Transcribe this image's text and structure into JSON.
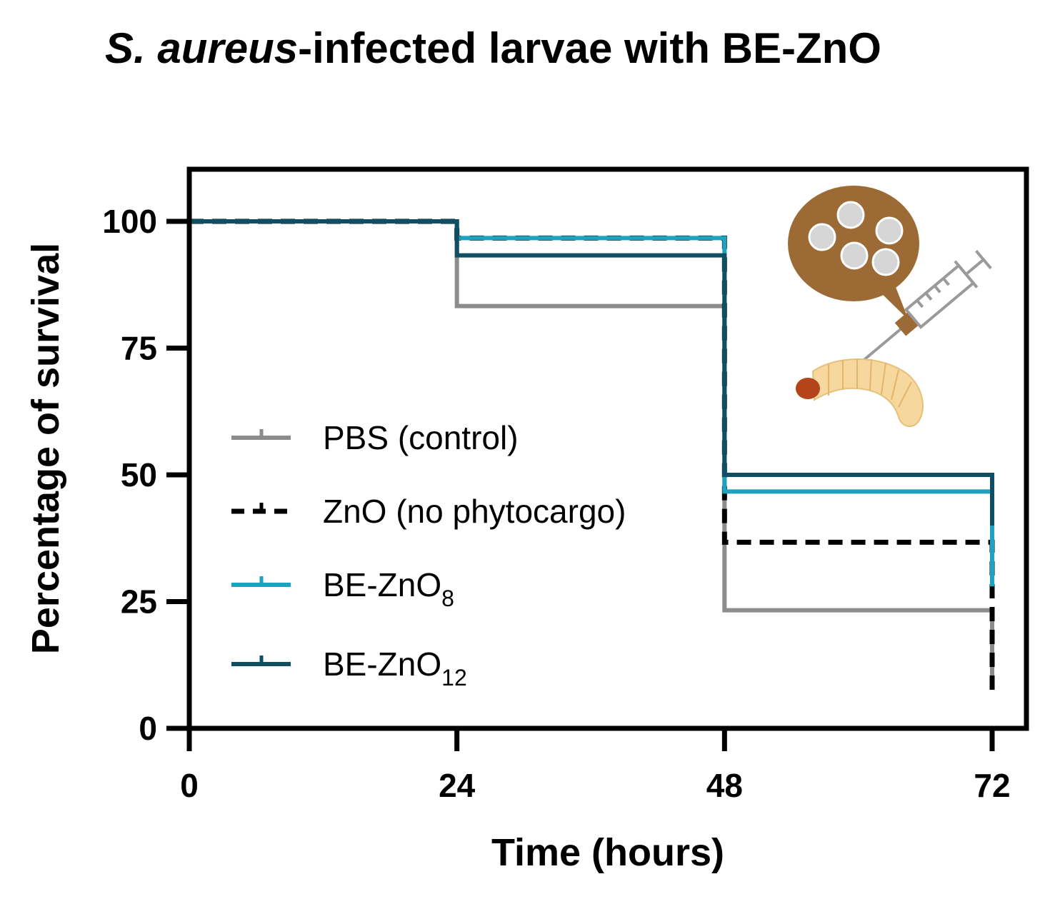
{
  "chart_data": {
    "type": "line",
    "subtype": "kaplan-meier-step",
    "title": {
      "italic_part": "S. aureus",
      "regular_part": "-infected larvae with BE-ZnO"
    },
    "xlabel": "Time (hours)",
    "ylabel": "Percentage of survival",
    "xlim": [
      0,
      72
    ],
    "ylim": [
      0,
      110
    ],
    "xticks": [
      0,
      24,
      48,
      72
    ],
    "yticks": [
      0,
      25,
      50,
      75,
      100
    ],
    "grid": false,
    "legend_position": "center-left",
    "series": [
      {
        "name": "PBS (control)",
        "label_main": "PBS (control)",
        "label_sub": "",
        "color": "#8c8c8c",
        "dash": "solid",
        "x": [
          0,
          24,
          48,
          72
        ],
        "values": [
          100,
          83.3,
          23.3,
          8
        ]
      },
      {
        "name": "ZnO (no phytocargo)",
        "label_main": "ZnO (no phytocargo)",
        "label_sub": "",
        "color": "#000000",
        "dash": "dashed",
        "x": [
          0,
          24,
          48,
          72
        ],
        "values": [
          100,
          96.7,
          36.7,
          7
        ]
      },
      {
        "name": "BE-ZnO8",
        "label_main": "BE-ZnO",
        "label_sub": "8",
        "color": "#1ea2c0",
        "dash": "solid",
        "x": [
          0,
          24,
          48,
          72
        ],
        "values": [
          100,
          96.7,
          46.7,
          28
        ]
      },
      {
        "name": "BE-ZnO12",
        "label_main": "BE-ZnO",
        "label_sub": "12",
        "color": "#0f4f63",
        "dash": "solid",
        "x": [
          0,
          24,
          48,
          72
        ],
        "values": [
          100,
          93.3,
          50,
          40
        ]
      }
    ]
  },
  "illustration": {
    "description_icon": "larva-syringe-nanoparticle-icon",
    "colors": {
      "bubble": "#9c6a34",
      "particle": "#d9d9d9",
      "larva": "#f6d79e",
      "head": "#b5441a",
      "syringe": "#9a9a9a"
    }
  }
}
